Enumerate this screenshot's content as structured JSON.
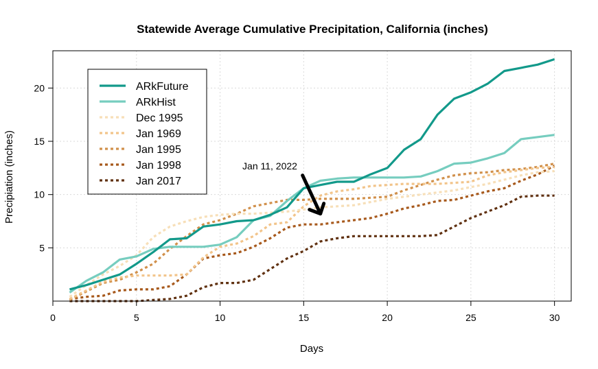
{
  "chart_data": {
    "type": "line",
    "title": "Statewide Average Cumulative Precipitation, California (inches)",
    "xlabel": "Days",
    "ylabel": "Precipiation (inches)",
    "xlim": [
      0,
      31
    ],
    "ylim": [
      0,
      23.5
    ],
    "xticks": [
      0,
      5,
      10,
      15,
      20,
      25,
      30
    ],
    "yticks": [
      5,
      10,
      15,
      20
    ],
    "grid": true,
    "legend_position": "top-left",
    "x": [
      1,
      2,
      3,
      4,
      5,
      6,
      7,
      8,
      9,
      10,
      11,
      12,
      13,
      14,
      15,
      16,
      17,
      18,
      19,
      20,
      21,
      22,
      23,
      24,
      25,
      26,
      27,
      28,
      29,
      30
    ],
    "series": [
      {
        "name": "ARkFuture",
        "color": "#12998a",
        "dash": "solid",
        "values": [
          1.1,
          1.5,
          2.0,
          2.5,
          3.5,
          4.6,
          5.8,
          5.9,
          7.0,
          7.2,
          7.5,
          7.6,
          8.1,
          8.8,
          10.6,
          10.9,
          11.2,
          11.2,
          11.9,
          12.5,
          14.2,
          15.2,
          17.5,
          19.0,
          19.6,
          20.4,
          21.6,
          21.9,
          22.2,
          22.7
        ]
      },
      {
        "name": "ARkHist",
        "color": "#76cdbf",
        "dash": "solid",
        "values": [
          0.8,
          1.9,
          2.7,
          3.9,
          4.2,
          4.9,
          5.1,
          5.1,
          5.1,
          5.3,
          6.0,
          7.6,
          8.0,
          9.4,
          10.6,
          11.3,
          11.5,
          11.6,
          11.6,
          11.6,
          11.6,
          11.7,
          12.2,
          12.9,
          13.0,
          13.4,
          13.9,
          15.2,
          15.4,
          15.6
        ]
      },
      {
        "name": "Dec 1995",
        "color": "#f7dfb8",
        "dash": "dotted",
        "values": [
          0.4,
          1.5,
          2.5,
          3.3,
          4.3,
          6.0,
          7.0,
          7.5,
          7.9,
          8.1,
          8.2,
          8.2,
          8.3,
          8.4,
          8.6,
          8.8,
          8.9,
          9.0,
          9.3,
          9.6,
          9.8,
          10.0,
          10.2,
          10.4,
          10.7,
          11.0,
          11.4,
          11.8,
          12.1,
          12.2
        ]
      },
      {
        "name": "Jan 1969",
        "color": "#f2c48a",
        "dash": "dotted",
        "values": [
          0.2,
          1.0,
          1.8,
          2.2,
          2.4,
          2.4,
          2.4,
          2.5,
          4.1,
          5.1,
          5.4,
          6.1,
          7.2,
          7.4,
          8.9,
          9.9,
          10.3,
          10.5,
          10.8,
          10.9,
          11.0,
          11.0,
          11.0,
          11.1,
          11.2,
          11.8,
          12.1,
          12.3,
          12.5,
          12.6
        ]
      },
      {
        "name": "Jan 1995",
        "color": "#d1904b",
        "dash": "dotted",
        "values": [
          0.1,
          0.9,
          1.7,
          2.0,
          2.7,
          3.5,
          4.9,
          6.1,
          7.2,
          7.6,
          8.2,
          8.9,
          9.2,
          9.5,
          9.5,
          9.6,
          9.6,
          9.6,
          9.7,
          9.8,
          10.4,
          10.9,
          11.4,
          11.8,
          12.0,
          12.1,
          12.3,
          12.4,
          12.6,
          12.9
        ]
      },
      {
        "name": "Jan 1998",
        "color": "#a7591c",
        "dash": "dotted",
        "values": [
          0.2,
          0.4,
          0.5,
          1.0,
          1.1,
          1.1,
          1.4,
          2.5,
          4.0,
          4.3,
          4.5,
          5.1,
          5.9,
          6.9,
          7.2,
          7.2,
          7.4,
          7.6,
          7.8,
          8.2,
          8.7,
          9.0,
          9.4,
          9.5,
          9.9,
          10.3,
          10.6,
          11.3,
          11.9,
          12.7
        ]
      },
      {
        "name": "Jan 2017",
        "color": "#603111",
        "dash": "dotted",
        "values": [
          0.0,
          0.0,
          0.0,
          0.0,
          0.0,
          0.1,
          0.2,
          0.5,
          1.3,
          1.7,
          1.7,
          2.0,
          3.0,
          4.0,
          4.7,
          5.6,
          5.9,
          6.1,
          6.1,
          6.1,
          6.1,
          6.1,
          6.2,
          7.0,
          7.8,
          8.4,
          9.0,
          9.8,
          9.9,
          9.9
        ]
      }
    ],
    "annotation": {
      "text": "Jan 11, 2022",
      "x": 16,
      "y": 8.2
    }
  }
}
